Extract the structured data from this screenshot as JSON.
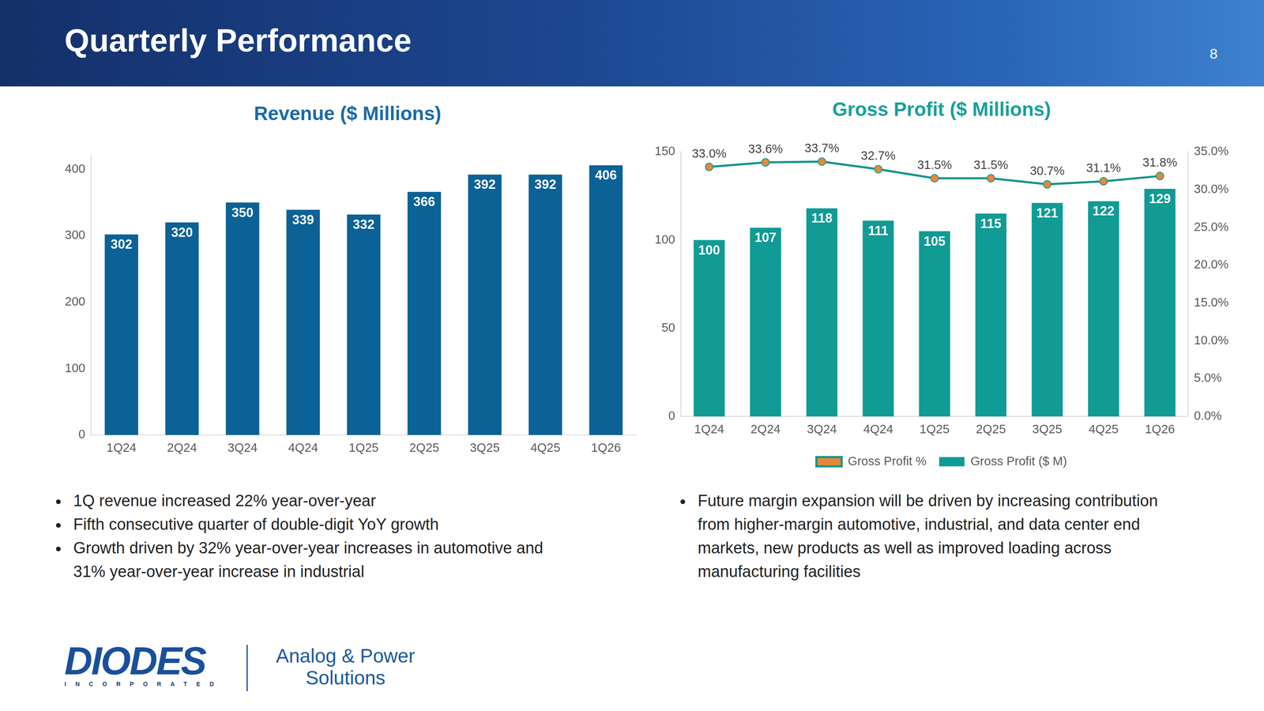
{
  "header": {
    "title": "Quarterly Performance",
    "page": "8"
  },
  "chart_data": [
    {
      "type": "bar",
      "title": "Revenue ($ Millions)",
      "categories": [
        "1Q24",
        "2Q24",
        "3Q24",
        "4Q24",
        "1Q25",
        "2Q25",
        "3Q25",
        "4Q25",
        "1Q26"
      ],
      "values": [
        302,
        320,
        350,
        339,
        332,
        366,
        392,
        392,
        406
      ],
      "color": "#0b6296",
      "ylim": [
        0,
        420
      ],
      "yticks": [
        0,
        100,
        200,
        300,
        400
      ],
      "grid": false,
      "data_labels": true
    },
    {
      "type": "bar",
      "title": "Gross Profit ($ Millions)",
      "categories": [
        "1Q24",
        "2Q24",
        "3Q24",
        "4Q24",
        "1Q25",
        "2Q25",
        "3Q25",
        "4Q25",
        "1Q26"
      ],
      "series": [
        {
          "name": "Gross Profit ($ M)",
          "type": "bar",
          "color": "#109b94",
          "values": [
            100,
            107,
            118,
            111,
            105,
            115,
            121,
            122,
            129
          ]
        },
        {
          "name": "Gross Profit %",
          "type": "line",
          "axis": "y2",
          "color": "#17948e",
          "marker": "circle",
          "line_style": "solid",
          "values": [
            33.0,
            33.6,
            33.7,
            32.7,
            31.5,
            31.5,
            30.7,
            31.1,
            31.8
          ],
          "value_labels": [
            "33.0%",
            "33.6%",
            "33.7%",
            "32.7%",
            "31.5%",
            "31.5%",
            "30.7%",
            "31.1%",
            "31.8%"
          ]
        }
      ],
      "ylim": [
        0,
        150
      ],
      "yticks": [
        0,
        50,
        100,
        150
      ],
      "y2lim": [
        0,
        35
      ],
      "y2ticks": [
        {
          "value": 0,
          "label": "0.0%"
        },
        {
          "value": 5,
          "label": "5.0%"
        },
        {
          "value": 10,
          "label": "10.0%"
        },
        {
          "value": 15,
          "label": "15.0%"
        },
        {
          "value": 20,
          "label": "20.0%"
        },
        {
          "value": 25,
          "label": "25.0%"
        },
        {
          "value": 30,
          "label": "30.0%"
        },
        {
          "value": 35,
          "label": "35.0%"
        }
      ],
      "grid": false,
      "legend": "bottom",
      "data_labels": true
    }
  ],
  "notes": {
    "left": [
      "1Q revenue increased 22% year-over-year",
      "Fifth consecutive quarter of double-digit YoY growth",
      "Growth driven by 32%  year-over-year increases in automotive and 31% year-over-year increase in industrial"
    ],
    "right": [
      "Future margin expansion will be driven by increasing contribution from higher-margin automotive, industrial, and data center end markets, new products as well as improved loading across manufacturing facilities"
    ]
  },
  "logo": {
    "name": "DIODES",
    "sub": "INCORPORATED",
    "tagline": [
      "Analog & Power",
      "Solutions"
    ]
  }
}
